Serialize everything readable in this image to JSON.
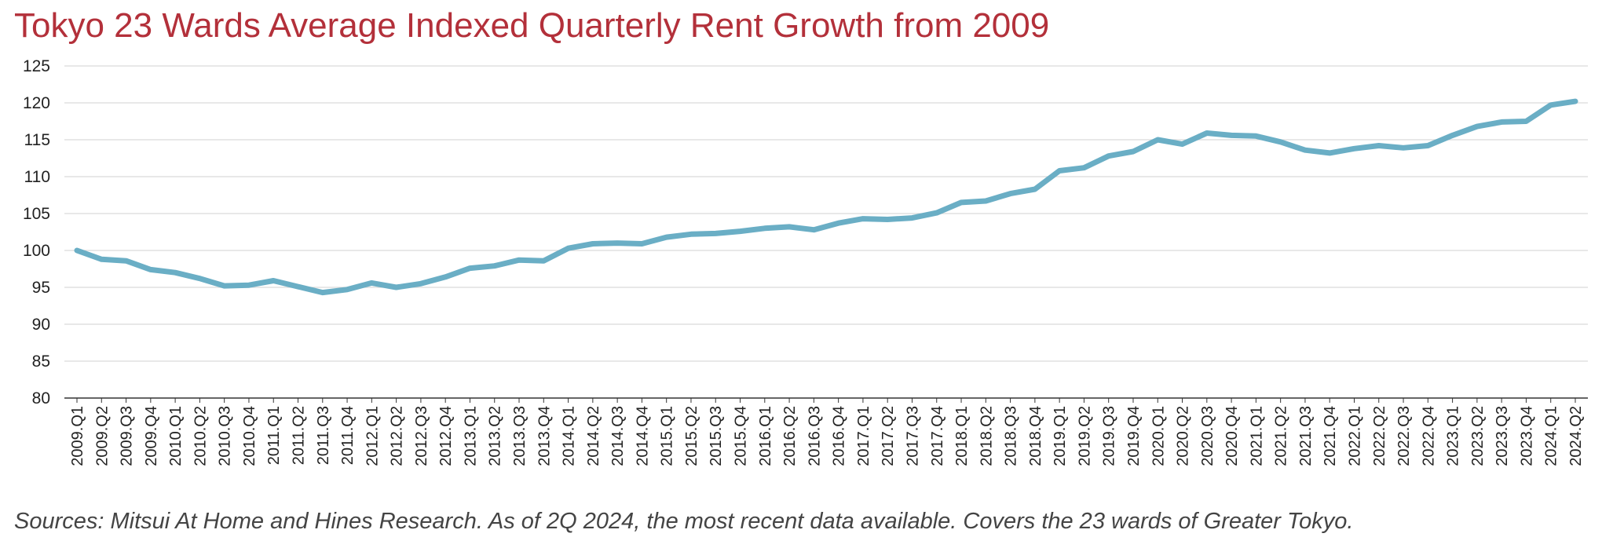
{
  "title": "Tokyo 23 Wards Average Indexed Quarterly Rent Growth from 2009",
  "source": "Sources: Mitsui At Home and Hines Research. As of 2Q 2024, the most recent data available. Covers the 23 wards of Greater Tokyo.",
  "colors": {
    "title": "#b3303a",
    "line": "#6aaec5",
    "grid": "#d9d9d9",
    "axis": "#333333"
  },
  "chart_data": {
    "type": "line",
    "title": "Tokyo 23 Wards Average Indexed Quarterly Rent Growth from 2009",
    "xlabel": "",
    "ylabel": "",
    "ylim": [
      80,
      125
    ],
    "yticks": [
      80,
      85,
      90,
      95,
      100,
      105,
      110,
      115,
      120,
      125
    ],
    "grid": true,
    "categories": [
      "2009.Q1",
      "2009.Q2",
      "2009.Q3",
      "2009.Q4",
      "2010.Q1",
      "2010.Q2",
      "2010.Q3",
      "2010.Q4",
      "2011.Q1",
      "2011.Q2",
      "2011.Q3",
      "2011.Q4",
      "2012.Q1",
      "2012.Q2",
      "2012.Q3",
      "2012.Q4",
      "2013.Q1",
      "2013.Q2",
      "2013.Q3",
      "2013.Q4",
      "2014.Q1",
      "2014.Q2",
      "2014.Q3",
      "2014.Q4",
      "2015.Q1",
      "2015.Q2",
      "2015.Q3",
      "2015.Q4",
      "2016.Q1",
      "2016.Q2",
      "2016.Q3",
      "2016.Q4",
      "2017.Q1",
      "2017.Q2",
      "2017.Q3",
      "2017.Q4",
      "2018.Q1",
      "2018.Q2",
      "2018.Q3",
      "2018.Q4",
      "2019.Q1",
      "2019.Q2",
      "2019.Q3",
      "2019.Q4",
      "2020.Q1",
      "2020.Q2",
      "2020.Q3",
      "2020.Q4",
      "2021.Q1",
      "2021.Q2",
      "2021.Q3",
      "2021.Q4",
      "2022.Q1",
      "2022.Q2",
      "2022.Q3",
      "2022.Q4",
      "2023.Q1",
      "2023.Q2",
      "2023.Q3",
      "2023.Q4",
      "2024.Q1",
      "2024.Q2"
    ],
    "series": [
      {
        "values": [
          100.0,
          98.8,
          98.6,
          97.4,
          97.0,
          96.2,
          95.2,
          95.3,
          95.9,
          95.1,
          94.3,
          94.7,
          95.6,
          95.0,
          95.5,
          96.4,
          97.6,
          97.9,
          98.7,
          98.6,
          100.3,
          100.9,
          101.0,
          100.9,
          101.8,
          102.2,
          102.3,
          102.6,
          103.0,
          103.2,
          102.8,
          103.7,
          104.3,
          104.2,
          104.4,
          105.1,
          106.5,
          106.7,
          107.7,
          108.3,
          110.8,
          111.2,
          112.8,
          113.4,
          115.0,
          114.4,
          115.9,
          115.6,
          115.5,
          114.7,
          113.6,
          113.2,
          113.8,
          114.2,
          113.9,
          114.2,
          115.6,
          116.8,
          117.4,
          117.5,
          119.7,
          120.2
        ]
      }
    ]
  }
}
